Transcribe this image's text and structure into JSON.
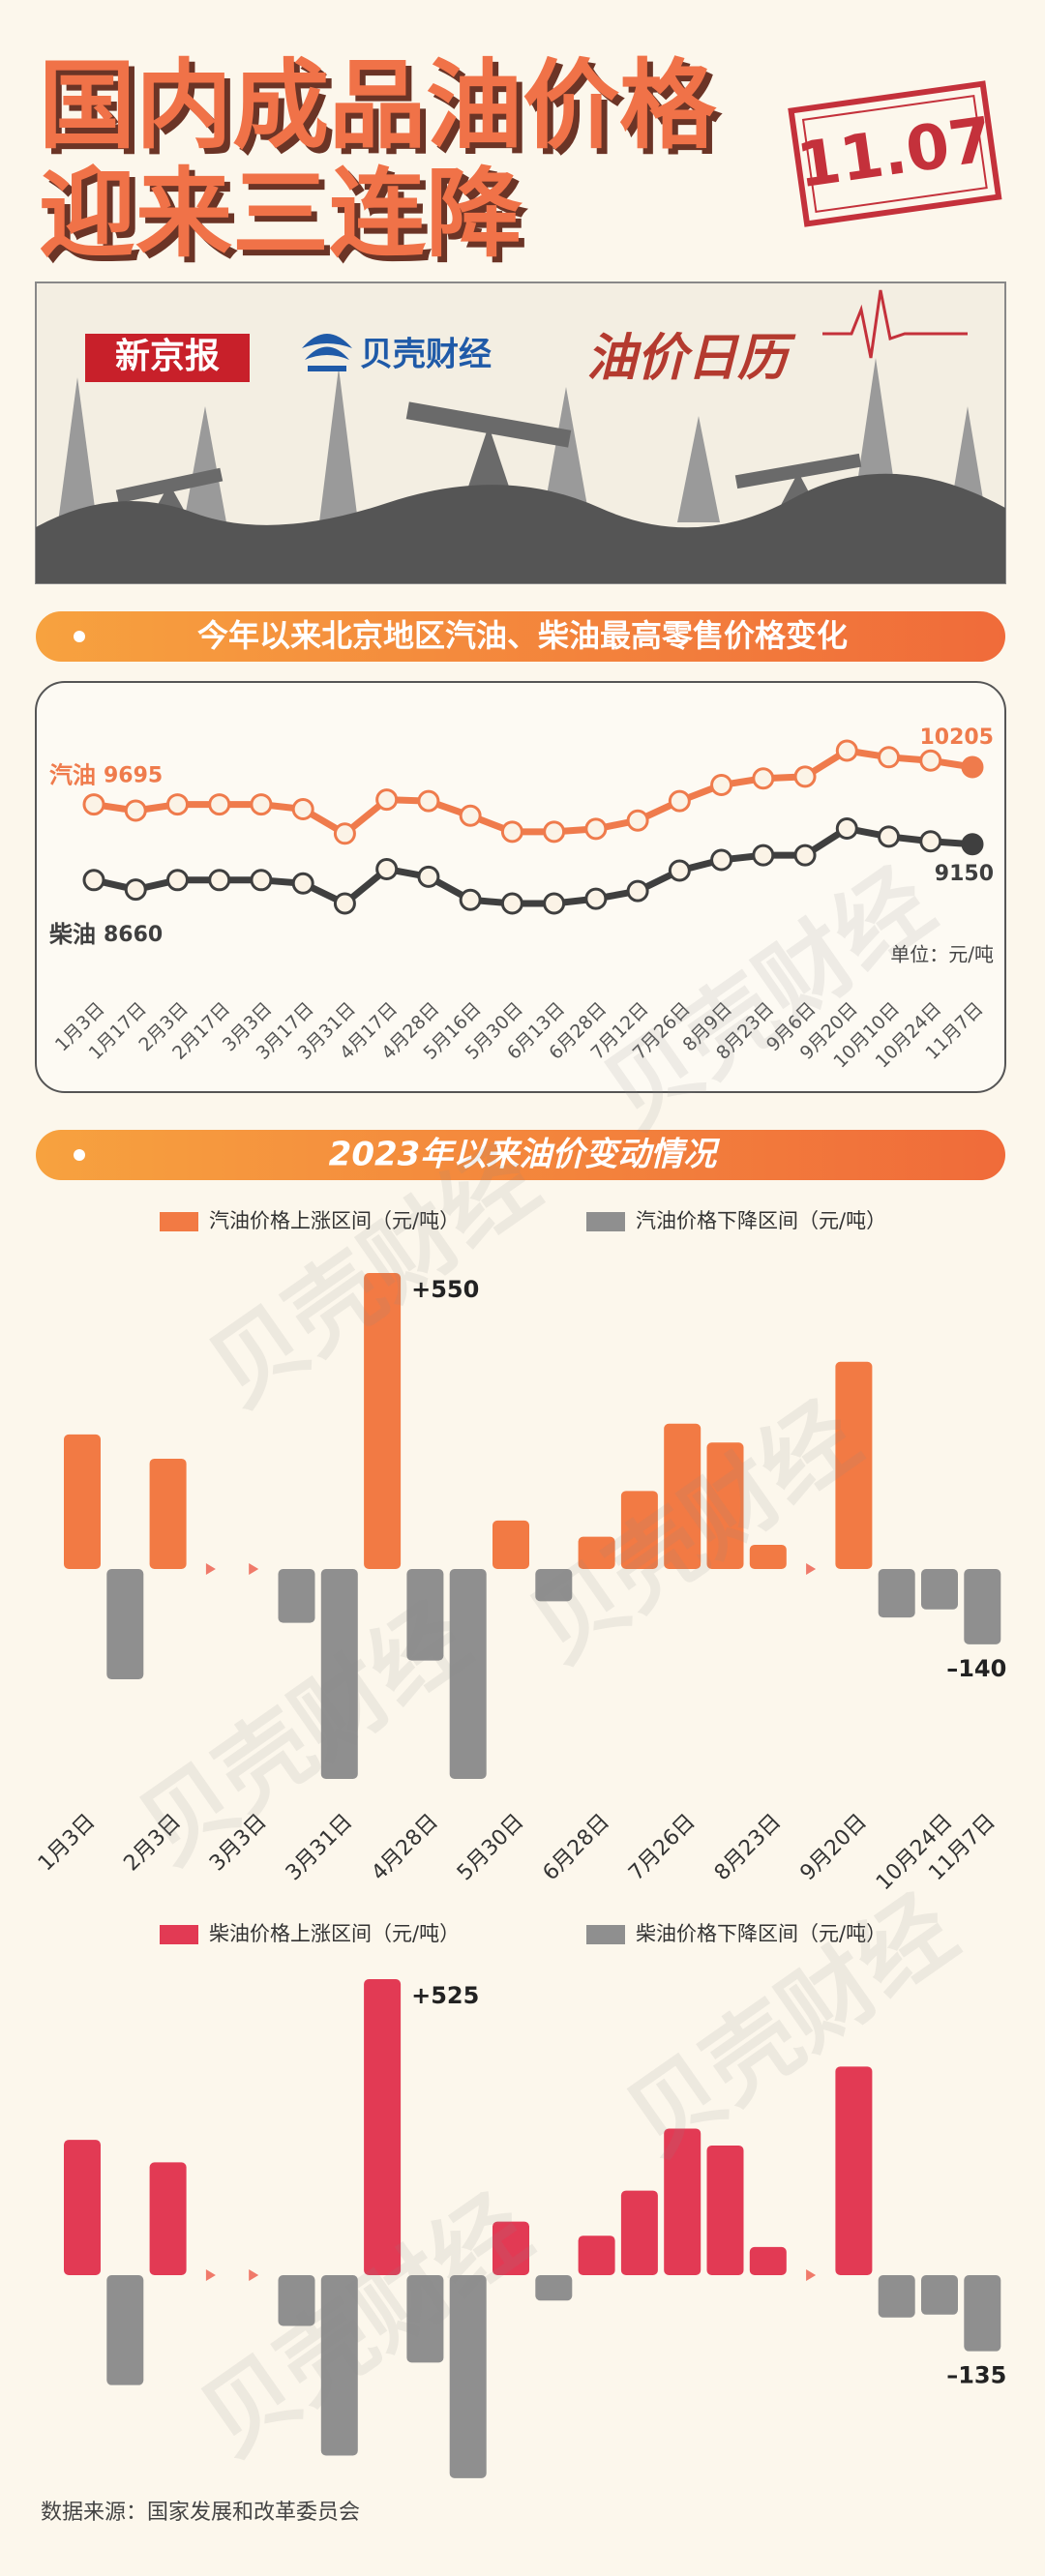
{
  "header": {
    "title_line1": "国内成品油价格",
    "title_line2": "迎来三连降",
    "date": "11.07",
    "logos": [
      "新京报",
      "贝壳财经"
    ],
    "banner_title": "油价日历"
  },
  "watermark": "贝壳财经",
  "chart_data": [
    {
      "type": "line",
      "title": "今年以来北京地区汽油、柴油最高零售价格变化",
      "categories": [
        "1月3日",
        "1月17日",
        "2月3日",
        "2月17日",
        "3月3日",
        "3月17日",
        "3月31日",
        "4月17日",
        "4月28日",
        "5月16日",
        "5月30日",
        "6月13日",
        "6月28日",
        "7月12日",
        "7月26日",
        "8月9日",
        "8月23日",
        "9月6日",
        "9月20日",
        "10月10日",
        "10月24日",
        "11月7日"
      ],
      "series": [
        {
          "name": "汽油",
          "color": "#ef7b4c",
          "values": [
            9695,
            9610,
            9695,
            9695,
            9695,
            9630,
            9295,
            9760,
            9740,
            9540,
            9320,
            9320,
            9360,
            9475,
            9740,
            9960,
            10050,
            10075,
            10430,
            10340,
            10295,
            10205
          ]
        },
        {
          "name": "柴油",
          "color": "#3f3f3f",
          "values": [
            8660,
            8530,
            8660,
            8660,
            8660,
            8615,
            8340,
            8810,
            8705,
            8390,
            8340,
            8340,
            8405,
            8510,
            8790,
            8935,
            9000,
            9000,
            9365,
            9255,
            9190,
            9150
          ]
        }
      ],
      "data_labels": "ends",
      "unit": "单位：元/吨"
    },
    {
      "type": "bar",
      "title": "2023年以来油价变动情况",
      "categories": [
        "1月3日",
        null,
        "2月3日",
        null,
        "3月3日",
        null,
        "3月31日",
        null,
        "4月28日",
        null,
        "5月30日",
        null,
        "6月28日",
        null,
        "7月26日",
        null,
        "8月23日",
        null,
        "9月20日",
        null,
        "10月24日",
        "11月7日"
      ],
      "values": [
        250,
        -205,
        205,
        0,
        0,
        -100,
        -390,
        550,
        -170,
        -390,
        90,
        -60,
        60,
        145,
        270,
        235,
        45,
        0,
        385,
        -90,
        -75,
        -140
      ],
      "value_labels": [
        null,
        null,
        null,
        null,
        null,
        null,
        null,
        "+550",
        null,
        null,
        null,
        null,
        null,
        null,
        null,
        null,
        null,
        null,
        null,
        null,
        null,
        "–140"
      ],
      "legend": [
        {
          "name": "汽油价格上涨区间（元/吨）",
          "color": "#f27a44"
        },
        {
          "name": "汽油价格下降区间（元/吨）",
          "color": "#8f8f8f"
        }
      ]
    },
    {
      "type": "bar",
      "values": [
        240,
        -195,
        200,
        0,
        0,
        -90,
        -320,
        525,
        -155,
        -360,
        95,
        -45,
        70,
        150,
        260,
        230,
        50,
        0,
        370,
        -75,
        -70,
        -135
      ],
      "value_labels": [
        null,
        null,
        null,
        null,
        null,
        null,
        null,
        "+525",
        null,
        null,
        null,
        null,
        null,
        null,
        null,
        null,
        null,
        null,
        null,
        null,
        null,
        "–135"
      ],
      "legend": [
        {
          "name": "柴油价格上涨区间（元/吨）",
          "color": "#e23a54"
        },
        {
          "name": "柴油价格下降区间（元/吨）",
          "color": "#8f8f8f"
        }
      ]
    }
  ],
  "source": "数据来源：国家发展和改革委员会"
}
